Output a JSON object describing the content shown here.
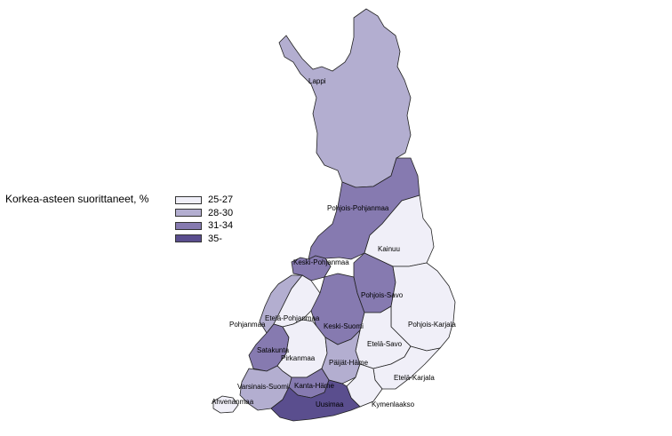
{
  "legend": {
    "title": "Korkea-asteen suorittaneet, %",
    "classes": [
      {
        "label": "25-27",
        "color": "#f0eff8"
      },
      {
        "label": "28-30",
        "color": "#b3aed0"
      },
      {
        "label": "31-34",
        "color": "#867ab0"
      },
      {
        "label": "35-",
        "color": "#5a4e8e"
      }
    ]
  },
  "regions": [
    {
      "name": "Lappi",
      "class": 1
    },
    {
      "name": "Pohjois-Pohjanmaa",
      "class": 2
    },
    {
      "name": "Kainuu",
      "class": 0
    },
    {
      "name": "Keski-Pohjanmaa",
      "class": 2
    },
    {
      "name": "Pohjois-Savo",
      "class": 1
    },
    {
      "name": "Etelä-Pohjanmaa",
      "class": 0
    },
    {
      "name": "Pohjanmaa",
      "class": 2
    },
    {
      "name": "Keski-Suomi",
      "class": 2
    },
    {
      "name": "Pohjois-Karjala",
      "class": 0
    },
    {
      "name": "Etelä-Savo",
      "class": 0
    },
    {
      "name": "Satakunta",
      "class": 0
    },
    {
      "name": "Pirkanmaa",
      "class": 2
    },
    {
      "name": "Päijät-Häme",
      "class": 0
    },
    {
      "name": "Etelä-Karjala",
      "class": 1
    },
    {
      "name": "Varsinais-Suomi",
      "class": 2
    },
    {
      "name": "Kanta-Häme",
      "class": 0
    },
    {
      "name": "Ahvenanmaa",
      "class": 1
    },
    {
      "name": "Uusimaa",
      "class": 3
    },
    {
      "name": "Kymenlaakso",
      "class": 0
    }
  ]
}
